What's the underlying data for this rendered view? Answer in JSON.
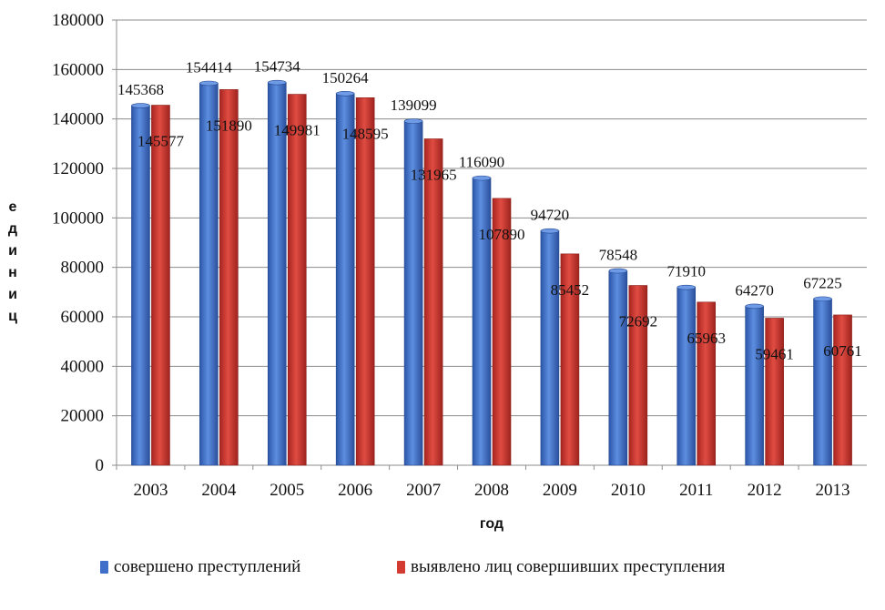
{
  "chart_data": {
    "type": "bar",
    "title": "",
    "xlabel": "год",
    "ylabel": "единиц",
    "ylim": [
      0,
      180000
    ],
    "yticks": [
      0,
      20000,
      40000,
      60000,
      80000,
      100000,
      120000,
      140000,
      160000,
      180000
    ],
    "grid": true,
    "legend_position": "bottom",
    "categories": [
      "2003",
      "2004",
      "2005",
      "2006",
      "2007",
      "2008",
      "2009",
      "2010",
      "2011",
      "2012",
      "2013"
    ],
    "series": [
      {
        "name": "совершено преступлений",
        "color": "#3f6fc8",
        "values": [
          145368,
          154414,
          154734,
          150264,
          139099,
          116090,
          94720,
          78548,
          71910,
          64270,
          67225
        ]
      },
      {
        "name": "выявлено лиц совершивших преступления",
        "color": "#d23a32",
        "values": [
          145577,
          151890,
          149981,
          148595,
          131965,
          107890,
          85452,
          72692,
          65963,
          59461,
          60761
        ]
      }
    ]
  }
}
